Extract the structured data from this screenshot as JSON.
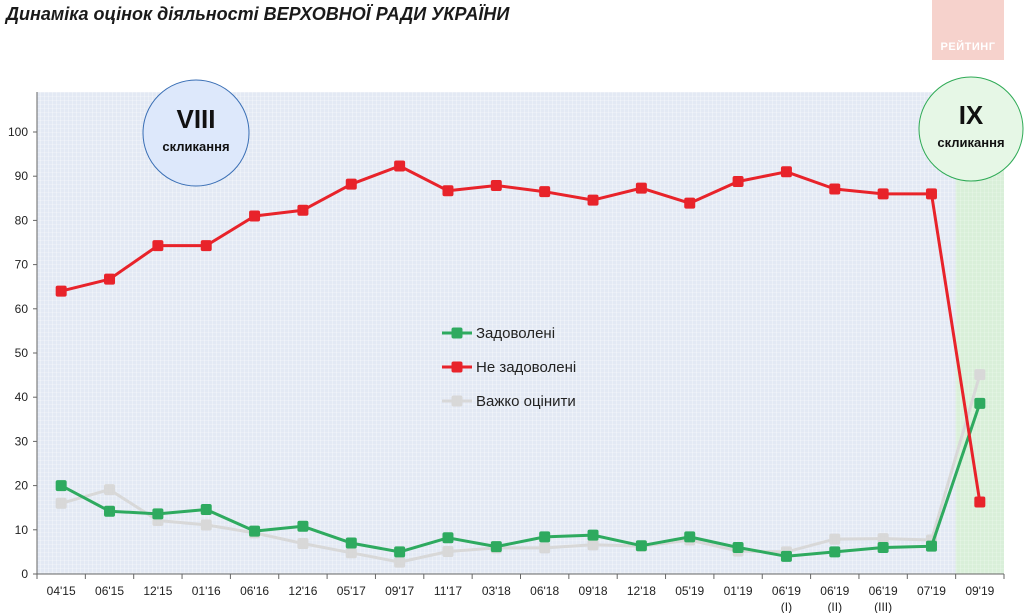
{
  "title": "Динаміка оцінок діяльності ВЕРХОВНОЇ РАДИ УКРАЇНИ",
  "logo_text": "РЕЙТИНГ",
  "badges": [
    {
      "roman": "VIII",
      "sub": "скликання",
      "color": "#3a6fb5"
    },
    {
      "roman": "IX",
      "sub": "скликання",
      "color": "#2eaa55"
    }
  ],
  "chart_data": {
    "type": "line",
    "categories": [
      "04'15",
      "06'15",
      "12'15",
      "01'16",
      "06'16",
      "12'16",
      "05'17",
      "09'17",
      "11'17",
      "03'18",
      "06'18",
      "09'18",
      "12'18",
      "05'19",
      "01'19",
      "06'19 (I)",
      "06'19 (II)",
      "06'19 (III)",
      "07'19",
      "09'19"
    ],
    "tick_labels": [
      [
        "04'15"
      ],
      [
        "06'15"
      ],
      [
        "12'15"
      ],
      [
        "01'16"
      ],
      [
        "06'16"
      ],
      [
        "12'16"
      ],
      [
        "05'17"
      ],
      [
        "09'17"
      ],
      [
        "11'17"
      ],
      [
        "03'18"
      ],
      [
        "06'18"
      ],
      [
        "09'18"
      ],
      [
        "12'18"
      ],
      [
        "05'19"
      ],
      [
        "01'19"
      ],
      [
        "06'19",
        "(I)"
      ],
      [
        "06'19",
        "(II)"
      ],
      [
        "06'19",
        "(III)"
      ],
      [
        "07'19"
      ],
      [
        "09'19"
      ]
    ],
    "ylim": [
      0,
      100
    ],
    "yticks": [
      0,
      10,
      20,
      30,
      40,
      50,
      60,
      70,
      80,
      90,
      100
    ],
    "grid": false,
    "legend_position": "center",
    "series": [
      {
        "name": "Задоволені",
        "color": "#2eaa5f",
        "values": [
          20,
          14.2,
          13.6,
          14.6,
          9.7,
          10.8,
          7,
          5,
          8.2,
          6.2,
          8.4,
          8.8,
          6.4,
          8.4,
          6,
          4,
          5,
          6,
          6.3,
          38.6
        ]
      },
      {
        "name": "Не задоволені",
        "color": "#e8232a",
        "values": [
          64,
          66.7,
          74.3,
          74.3,
          81,
          82.3,
          88.2,
          92.3,
          86.7,
          87.9,
          86.5,
          84.6,
          87.3,
          83.9,
          88.8,
          91,
          87.1,
          86,
          86,
          16.3
        ]
      },
      {
        "name": "Важко оцінити",
        "color": "#d8d8d8",
        "values": [
          16,
          19.1,
          12.1,
          11.1,
          9.3,
          6.9,
          4.8,
          2.7,
          5.1,
          5.9,
          5.9,
          6.6,
          6.3,
          7.7,
          5.2,
          5,
          7.9,
          8,
          7.7,
          45.1
        ]
      }
    ]
  }
}
